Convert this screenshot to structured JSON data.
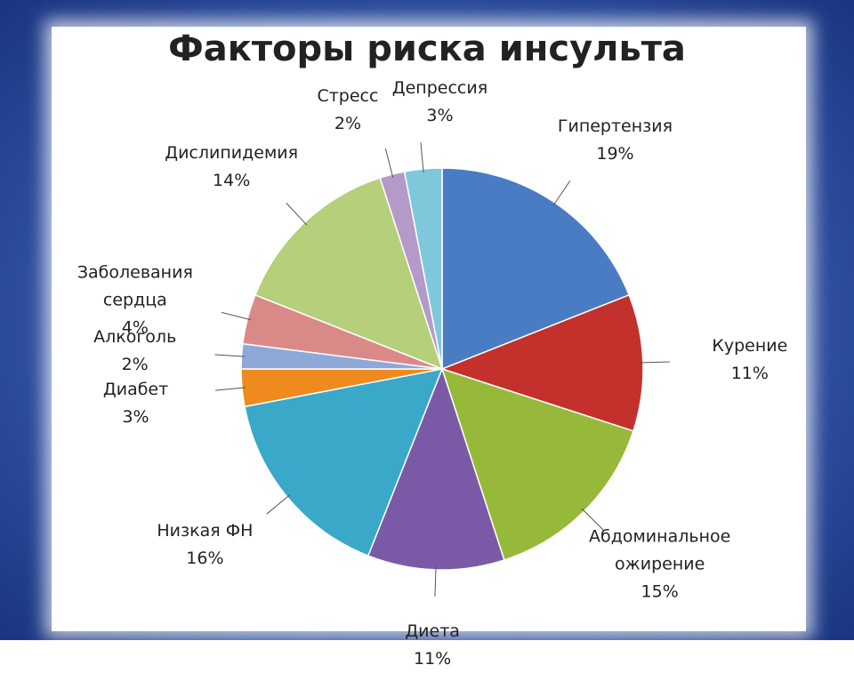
{
  "chart_data": {
    "type": "pie",
    "title": "Факторы риска инсульта",
    "categories": [
      "Гипертензия",
      "Курение",
      "Абдоминальное ожирение",
      "Диета",
      "Низкая ФН",
      "Диабет",
      "Алкоголь",
      "Заболевания сердца",
      "Дислипидемия",
      "Стресс",
      "Депрессия"
    ],
    "values": [
      19,
      11,
      15,
      11,
      16,
      3,
      2,
      4,
      14,
      2,
      3
    ],
    "value_labels": [
      "19%",
      "11%",
      "15%",
      "11%",
      "16%",
      "3%",
      "2%",
      "4%",
      "14%",
      "2%",
      "3%"
    ],
    "colors": [
      "#4a7cc4",
      "#c4302b",
      "#96b93a",
      "#7a5aa6",
      "#3aa8c8",
      "#ee8a1e",
      "#8ea8d8",
      "#d98a88",
      "#b5cf7a",
      "#b49ac8",
      "#7fc8dc"
    ]
  }
}
